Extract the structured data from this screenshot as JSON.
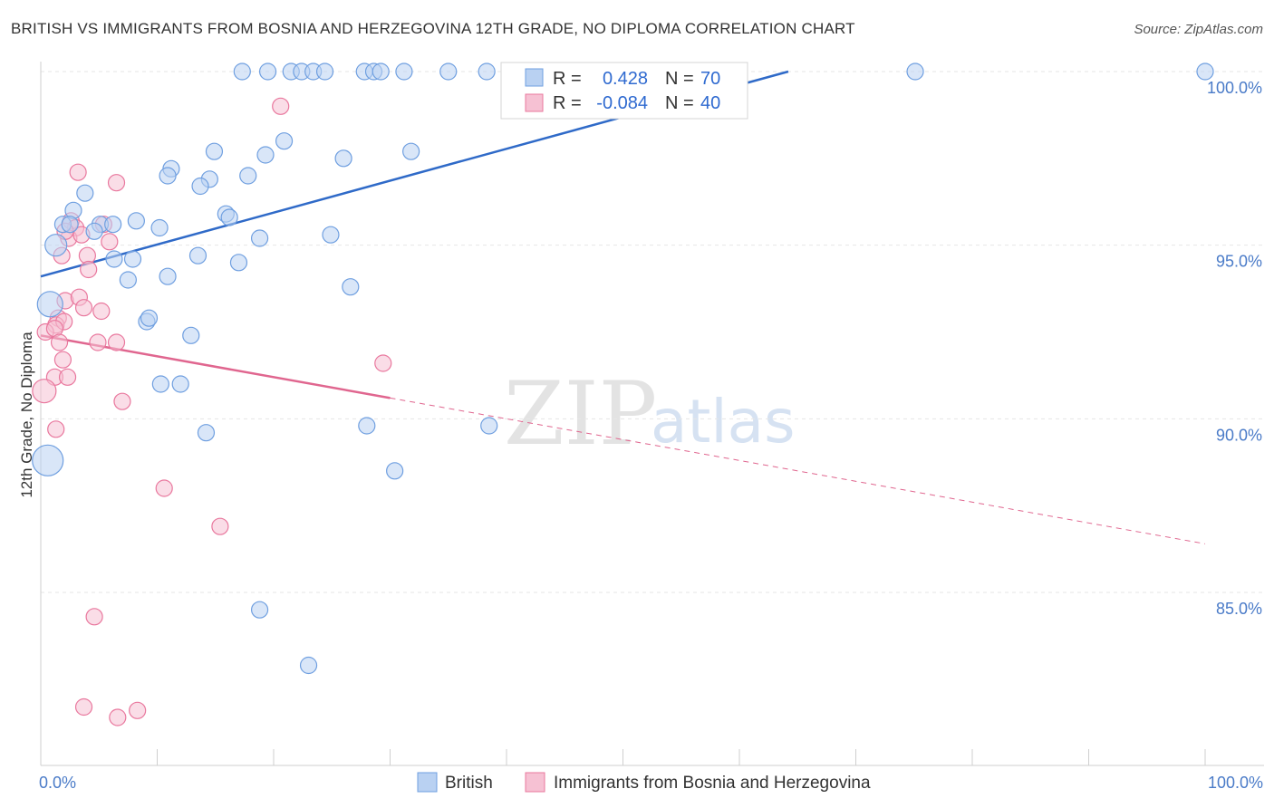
{
  "header": {
    "title": "BRITISH VS IMMIGRANTS FROM BOSNIA AND HERZEGOVINA 12TH GRADE, NO DIPLOMA CORRELATION CHART",
    "source": "Source: ZipAtlas.com"
  },
  "watermark": {
    "zip": "ZIP",
    "atlas": "atlas"
  },
  "colors": {
    "british": "#6f9fe0",
    "british_fill": "#b9d1f2",
    "bosnia": "#e9789e",
    "bosnia_fill": "#f6c1d3",
    "axis_label": "#4a7bc8",
    "grid": "#e6e6e6"
  },
  "stats_legend": {
    "british": {
      "r_label": "R =",
      "r_value": "0.428",
      "n_label": "N =",
      "n_value": "70"
    },
    "bosnia": {
      "r_label": "R =",
      "r_value": "-0.084",
      "n_label": "N =",
      "n_value": "40"
    }
  },
  "chart_data": {
    "type": "scatter",
    "title": "BRITISH VS IMMIGRANTS FROM BOSNIA AND HERZEGOVINA 12TH GRADE, NO DIPLOMA CORRELATION CHART",
    "xlabel": "",
    "ylabel": "12th Grade, No Diploma",
    "xlim": [
      0,
      100
    ],
    "ylim": [
      80.5,
      100.5
    ],
    "x_tick_labels": [
      "0.0%",
      "100.0%"
    ],
    "y_ticks": [
      85,
      90,
      95,
      100
    ],
    "y_tick_labels": [
      "85.0%",
      "90.0%",
      "95.0%",
      "100.0%"
    ],
    "grid": true,
    "legend_placement": "bottom-center",
    "series": [
      {
        "name": "British",
        "r": 0.428,
        "n": 70,
        "trend": {
          "x": [
            0,
            64.2
          ],
          "y": [
            94.1,
            100.0
          ]
        },
        "points": [
          [
            17.3,
            100.0
          ],
          [
            19.5,
            100.0
          ],
          [
            21.5,
            100.0
          ],
          [
            22.4,
            100.0
          ],
          [
            23.4,
            100.0
          ],
          [
            24.4,
            100.0
          ],
          [
            27.8,
            100.0
          ],
          [
            28.6,
            100.0
          ],
          [
            29.2,
            100.0
          ],
          [
            31.2,
            100.0
          ],
          [
            35.0,
            100.0
          ],
          [
            38.3,
            100.0
          ],
          [
            41.8,
            100.0
          ],
          [
            42.3,
            100.0
          ],
          [
            47.4,
            100.0
          ],
          [
            75.1,
            100.0
          ],
          [
            100.0,
            100.0
          ],
          [
            20.9,
            98.0
          ],
          [
            14.9,
            97.7
          ],
          [
            19.3,
            97.6
          ],
          [
            26.0,
            97.5
          ],
          [
            31.8,
            97.7
          ],
          [
            11.2,
            97.2
          ],
          [
            10.9,
            97.0
          ],
          [
            14.5,
            96.9
          ],
          [
            17.8,
            97.0
          ],
          [
            13.7,
            96.7
          ],
          [
            3.8,
            96.5
          ],
          [
            2.8,
            96.0
          ],
          [
            1.9,
            95.6
          ],
          [
            2.5,
            95.6
          ],
          [
            5.1,
            95.6
          ],
          [
            6.2,
            95.6
          ],
          [
            4.6,
            95.4
          ],
          [
            8.2,
            95.7
          ],
          [
            10.2,
            95.5
          ],
          [
            15.9,
            95.9
          ],
          [
            16.2,
            95.8
          ],
          [
            18.8,
            95.2
          ],
          [
            24.9,
            95.3
          ],
          [
            1.3,
            95.0
          ],
          [
            6.3,
            94.6
          ],
          [
            7.9,
            94.6
          ],
          [
            13.5,
            94.7
          ],
          [
            17.0,
            94.5
          ],
          [
            7.5,
            94.0
          ],
          [
            10.9,
            94.1
          ],
          [
            26.6,
            93.8
          ],
          [
            0.8,
            93.3
          ],
          [
            9.1,
            92.8
          ],
          [
            9.3,
            92.9
          ],
          [
            12.9,
            92.4
          ],
          [
            10.3,
            91.0
          ],
          [
            12.0,
            91.0
          ],
          [
            14.2,
            89.6
          ],
          [
            28.0,
            89.8
          ],
          [
            38.5,
            89.8
          ],
          [
            30.4,
            88.5
          ],
          [
            0.6,
            88.8
          ],
          [
            18.8,
            84.5
          ],
          [
            23.0,
            82.9
          ]
        ],
        "point_sizes_note": "larger markers near x=0 at 95.0, 93.3 and 88.8"
      },
      {
        "name": "Immigrants from Bosnia and Herzegovina",
        "r": -0.084,
        "n": 40,
        "trend_solid": {
          "x": [
            0,
            30
          ],
          "y": [
            92.4,
            90.6
          ]
        },
        "trend_dashed": {
          "x": [
            30,
            100
          ],
          "y": [
            90.6,
            86.4
          ]
        },
        "points": [
          [
            20.6,
            99.0
          ],
          [
            3.2,
            97.1
          ],
          [
            6.5,
            96.8
          ],
          [
            2.6,
            95.7
          ],
          [
            3.0,
            95.5
          ],
          [
            2.4,
            95.2
          ],
          [
            3.5,
            95.3
          ],
          [
            5.4,
            95.6
          ],
          [
            2.1,
            95.4
          ],
          [
            5.9,
            95.1
          ],
          [
            1.8,
            94.7
          ],
          [
            4.0,
            94.7
          ],
          [
            4.1,
            94.3
          ],
          [
            2.1,
            93.4
          ],
          [
            3.3,
            93.5
          ],
          [
            5.2,
            93.1
          ],
          [
            3.7,
            93.2
          ],
          [
            1.5,
            92.9
          ],
          [
            1.3,
            92.7
          ],
          [
            2.0,
            92.8
          ],
          [
            0.4,
            92.5
          ],
          [
            1.2,
            92.6
          ],
          [
            6.5,
            92.2
          ],
          [
            1.6,
            92.2
          ],
          [
            4.9,
            92.2
          ],
          [
            1.9,
            91.7
          ],
          [
            29.4,
            91.6
          ],
          [
            1.2,
            91.2
          ],
          [
            2.3,
            91.2
          ],
          [
            0.3,
            90.8
          ],
          [
            7.0,
            90.5
          ],
          [
            1.3,
            89.7
          ],
          [
            10.6,
            88.0
          ],
          [
            15.4,
            86.9
          ],
          [
            4.6,
            84.3
          ],
          [
            3.7,
            81.7
          ],
          [
            6.6,
            81.4
          ],
          [
            8.3,
            81.6
          ]
        ]
      }
    ]
  },
  "bottom_legend": {
    "items": [
      {
        "label": "British"
      },
      {
        "label": "Immigrants from Bosnia and Herzegovina"
      }
    ]
  }
}
